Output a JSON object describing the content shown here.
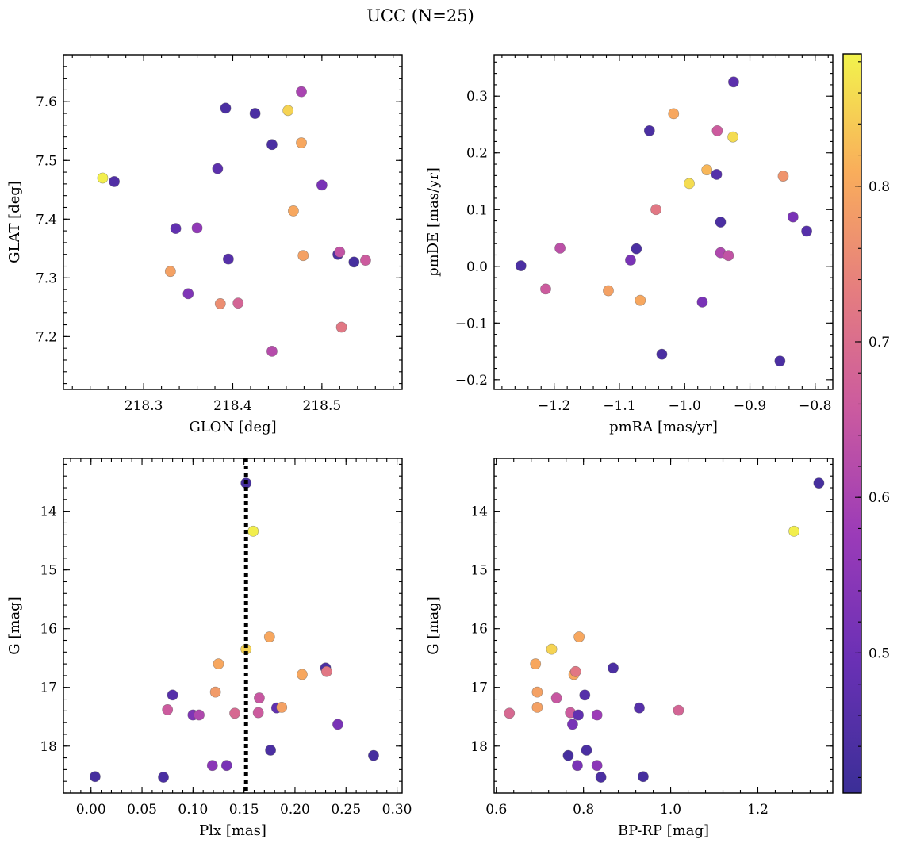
{
  "title": "UCC (N=25)",
  "colorbar": {
    "range": [
      0.41,
      0.885
    ],
    "ticks": [
      0.5,
      0.6,
      0.7,
      0.8
    ],
    "tick_labels": [
      "0.5",
      "0.6",
      "0.7",
      "0.8"
    ]
  },
  "chart_data": [
    {
      "type": "scatter",
      "xlabel": "GLON [deg]",
      "ylabel": "GLAT [deg]",
      "xlim": [
        218.21,
        218.59
      ],
      "ylim": [
        7.11,
        7.68
      ],
      "xticks": [
        218.3,
        218.4,
        218.5
      ],
      "xtick_labels": [
        "218.3",
        "218.4",
        "218.5"
      ],
      "yticks": [
        7.2,
        7.3,
        7.4,
        7.5,
        7.6
      ],
      "ytick_labels": [
        "7.2",
        "7.3",
        "7.4",
        "7.5",
        "7.6"
      ],
      "y_inverted": false,
      "points": [
        {
          "x": 218.254,
          "y": 7.47,
          "c": 0.88
        },
        {
          "x": 218.267,
          "y": 7.464,
          "c": 0.45
        },
        {
          "x": 218.33,
          "y": 7.311,
          "c": 0.79
        },
        {
          "x": 218.336,
          "y": 7.384,
          "c": 0.48
        },
        {
          "x": 218.35,
          "y": 7.273,
          "c": 0.53
        },
        {
          "x": 218.36,
          "y": 7.385,
          "c": 0.56
        },
        {
          "x": 218.383,
          "y": 7.486,
          "c": 0.47
        },
        {
          "x": 218.386,
          "y": 7.256,
          "c": 0.76
        },
        {
          "x": 218.392,
          "y": 7.589,
          "c": 0.44
        },
        {
          "x": 218.395,
          "y": 7.332,
          "c": 0.46
        },
        {
          "x": 218.406,
          "y": 7.257,
          "c": 0.68
        },
        {
          "x": 218.425,
          "y": 7.58,
          "c": 0.44
        },
        {
          "x": 218.444,
          "y": 7.527,
          "c": 0.44
        },
        {
          "x": 218.444,
          "y": 7.175,
          "c": 0.62
        },
        {
          "x": 218.462,
          "y": 7.585,
          "c": 0.85
        },
        {
          "x": 218.468,
          "y": 7.414,
          "c": 0.8
        },
        {
          "x": 218.477,
          "y": 7.617,
          "c": 0.6
        },
        {
          "x": 218.477,
          "y": 7.53,
          "c": 0.8
        },
        {
          "x": 218.479,
          "y": 7.338,
          "c": 0.79
        },
        {
          "x": 218.5,
          "y": 7.458,
          "c": 0.52
        },
        {
          "x": 218.518,
          "y": 7.34,
          "c": 0.44
        },
        {
          "x": 218.52,
          "y": 7.344,
          "c": 0.64
        },
        {
          "x": 218.522,
          "y": 7.216,
          "c": 0.72
        },
        {
          "x": 218.536,
          "y": 7.327,
          "c": 0.43
        },
        {
          "x": 218.549,
          "y": 7.33,
          "c": 0.66
        }
      ]
    },
    {
      "type": "scatter",
      "xlabel": "pmRA [mas/yr]",
      "ylabel": "pmDE [mas/yr]",
      "xlim": [
        -1.292,
        -0.773
      ],
      "ylim": [
        -0.217,
        0.373
      ],
      "xticks": [
        -1.2,
        -1.1,
        -1.0,
        -0.9,
        -0.8
      ],
      "xtick_labels": [
        "−1.2",
        "−1.1",
        "−1.0",
        "−0.9",
        "−0.8"
      ],
      "yticks": [
        -0.2,
        -0.1,
        0.0,
        0.1,
        0.2,
        0.3
      ],
      "ytick_labels": [
        "−0.2",
        "−0.1",
        "0.0",
        "0.1",
        "0.2",
        "0.3"
      ],
      "y_inverted": false,
      "points": [
        {
          "x": -1.251,
          "y": 0.001,
          "c": 0.44
        },
        {
          "x": -1.213,
          "y": -0.04,
          "c": 0.66
        },
        {
          "x": -1.191,
          "y": 0.032,
          "c": 0.63
        },
        {
          "x": -1.117,
          "y": -0.043,
          "c": 0.79
        },
        {
          "x": -1.083,
          "y": 0.011,
          "c": 0.52
        },
        {
          "x": -1.074,
          "y": 0.031,
          "c": 0.44
        },
        {
          "x": -1.068,
          "y": -0.06,
          "c": 0.8
        },
        {
          "x": -1.054,
          "y": 0.239,
          "c": 0.44
        },
        {
          "x": -1.044,
          "y": 0.1,
          "c": 0.72
        },
        {
          "x": -1.035,
          "y": -0.155,
          "c": 0.44
        },
        {
          "x": -1.017,
          "y": 0.269,
          "c": 0.8
        },
        {
          "x": -0.993,
          "y": 0.146,
          "c": 0.86
        },
        {
          "x": -0.973,
          "y": -0.063,
          "c": 0.52
        },
        {
          "x": -0.966,
          "y": 0.17,
          "c": 0.82
        },
        {
          "x": -0.951,
          "y": 0.162,
          "c": 0.46
        },
        {
          "x": -0.95,
          "y": 0.239,
          "c": 0.66
        },
        {
          "x": -0.945,
          "y": 0.078,
          "c": 0.44
        },
        {
          "x": -0.945,
          "y": 0.024,
          "c": 0.61
        },
        {
          "x": -0.933,
          "y": 0.019,
          "c": 0.64
        },
        {
          "x": -0.926,
          "y": 0.228,
          "c": 0.86
        },
        {
          "x": -0.925,
          "y": 0.325,
          "c": 0.47
        },
        {
          "x": -0.854,
          "y": -0.167,
          "c": 0.44
        },
        {
          "x": -0.849,
          "y": 0.159,
          "c": 0.77
        },
        {
          "x": -0.834,
          "y": 0.087,
          "c": 0.52
        },
        {
          "x": -0.813,
          "y": 0.062,
          "c": 0.46
        }
      ]
    },
    {
      "type": "scatter",
      "xlabel": "Plx [mas]",
      "ylabel": "G [mag]",
      "xlim": [
        -0.027,
        0.305
      ],
      "ylim": [
        13.1,
        18.8
      ],
      "xticks": [
        0.0,
        0.05,
        0.1,
        0.15,
        0.2,
        0.25,
        0.3
      ],
      "xtick_labels": [
        "0.00",
        "0.05",
        "0.10",
        "0.15",
        "0.20",
        "0.25",
        "0.30"
      ],
      "yticks": [
        14,
        15,
        16,
        17,
        18
      ],
      "ytick_labels": [
        "14",
        "15",
        "16",
        "17",
        "18"
      ],
      "y_inverted": true,
      "vline": 0.152,
      "points": [
        {
          "x": 0.004,
          "y": 18.52,
          "c": 0.43
        },
        {
          "x": 0.071,
          "y": 18.53,
          "c": 0.44
        },
        {
          "x": 0.075,
          "y": 17.38,
          "c": 0.66
        },
        {
          "x": 0.08,
          "y": 17.13,
          "c": 0.46
        },
        {
          "x": 0.1,
          "y": 17.47,
          "c": 0.53
        },
        {
          "x": 0.106,
          "y": 17.47,
          "c": 0.61
        },
        {
          "x": 0.119,
          "y": 18.33,
          "c": 0.55
        },
        {
          "x": 0.122,
          "y": 17.08,
          "c": 0.78
        },
        {
          "x": 0.125,
          "y": 16.6,
          "c": 0.8
        },
        {
          "x": 0.133,
          "y": 18.33,
          "c": 0.52
        },
        {
          "x": 0.141,
          "y": 17.44,
          "c": 0.69
        },
        {
          "x": 0.152,
          "y": 13.52,
          "c": 0.43
        },
        {
          "x": 0.152,
          "y": 16.35,
          "c": 0.85
        },
        {
          "x": 0.159,
          "y": 14.34,
          "c": 0.88
        },
        {
          "x": 0.164,
          "y": 17.43,
          "c": 0.66
        },
        {
          "x": 0.165,
          "y": 17.18,
          "c": 0.65
        },
        {
          "x": 0.175,
          "y": 16.14,
          "c": 0.8
        },
        {
          "x": 0.176,
          "y": 18.07,
          "c": 0.44
        },
        {
          "x": 0.182,
          "y": 17.35,
          "c": 0.48
        },
        {
          "x": 0.187,
          "y": 17.34,
          "c": 0.79
        },
        {
          "x": 0.207,
          "y": 16.78,
          "c": 0.8
        },
        {
          "x": 0.23,
          "y": 16.67,
          "c": 0.44
        },
        {
          "x": 0.231,
          "y": 16.73,
          "c": 0.72
        },
        {
          "x": 0.242,
          "y": 17.63,
          "c": 0.52
        },
        {
          "x": 0.277,
          "y": 18.16,
          "c": 0.43
        }
      ]
    },
    {
      "type": "scatter",
      "xlabel": "BP-RP [mag]",
      "ylabel": "G [mag]",
      "xlim": [
        0.595,
        1.372
      ],
      "ylim": [
        13.1,
        18.8
      ],
      "xticks": [
        0.6,
        0.8,
        1.0,
        1.2
      ],
      "xtick_labels": [
        "0.6",
        "0.8",
        "1.0",
        "1.2"
      ],
      "yticks": [
        14,
        15,
        16,
        17,
        18
      ],
      "ytick_labels": [
        "14",
        "15",
        "16",
        "17",
        "18"
      ],
      "y_inverted": true,
      "points": [
        {
          "x": 0.63,
          "y": 17.44,
          "c": 0.69
        },
        {
          "x": 0.69,
          "y": 16.6,
          "c": 0.8
        },
        {
          "x": 0.694,
          "y": 17.08,
          "c": 0.79
        },
        {
          "x": 0.694,
          "y": 17.34,
          "c": 0.79
        },
        {
          "x": 0.727,
          "y": 16.35,
          "c": 0.85
        },
        {
          "x": 0.738,
          "y": 17.18,
          "c": 0.65
        },
        {
          "x": 0.765,
          "y": 18.16,
          "c": 0.43
        },
        {
          "x": 0.77,
          "y": 17.43,
          "c": 0.66
        },
        {
          "x": 0.775,
          "y": 17.63,
          "c": 0.52
        },
        {
          "x": 0.778,
          "y": 16.78,
          "c": 0.8
        },
        {
          "x": 0.782,
          "y": 16.73,
          "c": 0.72
        },
        {
          "x": 0.786,
          "y": 18.33,
          "c": 0.52
        },
        {
          "x": 0.788,
          "y": 17.47,
          "c": 0.48
        },
        {
          "x": 0.79,
          "y": 16.14,
          "c": 0.8
        },
        {
          "x": 0.803,
          "y": 17.13,
          "c": 0.46
        },
        {
          "x": 0.807,
          "y": 18.07,
          "c": 0.44
        },
        {
          "x": 0.831,
          "y": 17.47,
          "c": 0.58
        },
        {
          "x": 0.831,
          "y": 18.33,
          "c": 0.55
        },
        {
          "x": 0.84,
          "y": 18.53,
          "c": 0.44
        },
        {
          "x": 0.868,
          "y": 16.67,
          "c": 0.44
        },
        {
          "x": 0.928,
          "y": 17.35,
          "c": 0.46
        },
        {
          "x": 0.937,
          "y": 18.52,
          "c": 0.43
        },
        {
          "x": 1.018,
          "y": 17.39,
          "c": 0.68
        },
        {
          "x": 1.283,
          "y": 14.34,
          "c": 0.88
        },
        {
          "x": 1.34,
          "y": 13.52,
          "c": 0.43
        }
      ]
    }
  ]
}
